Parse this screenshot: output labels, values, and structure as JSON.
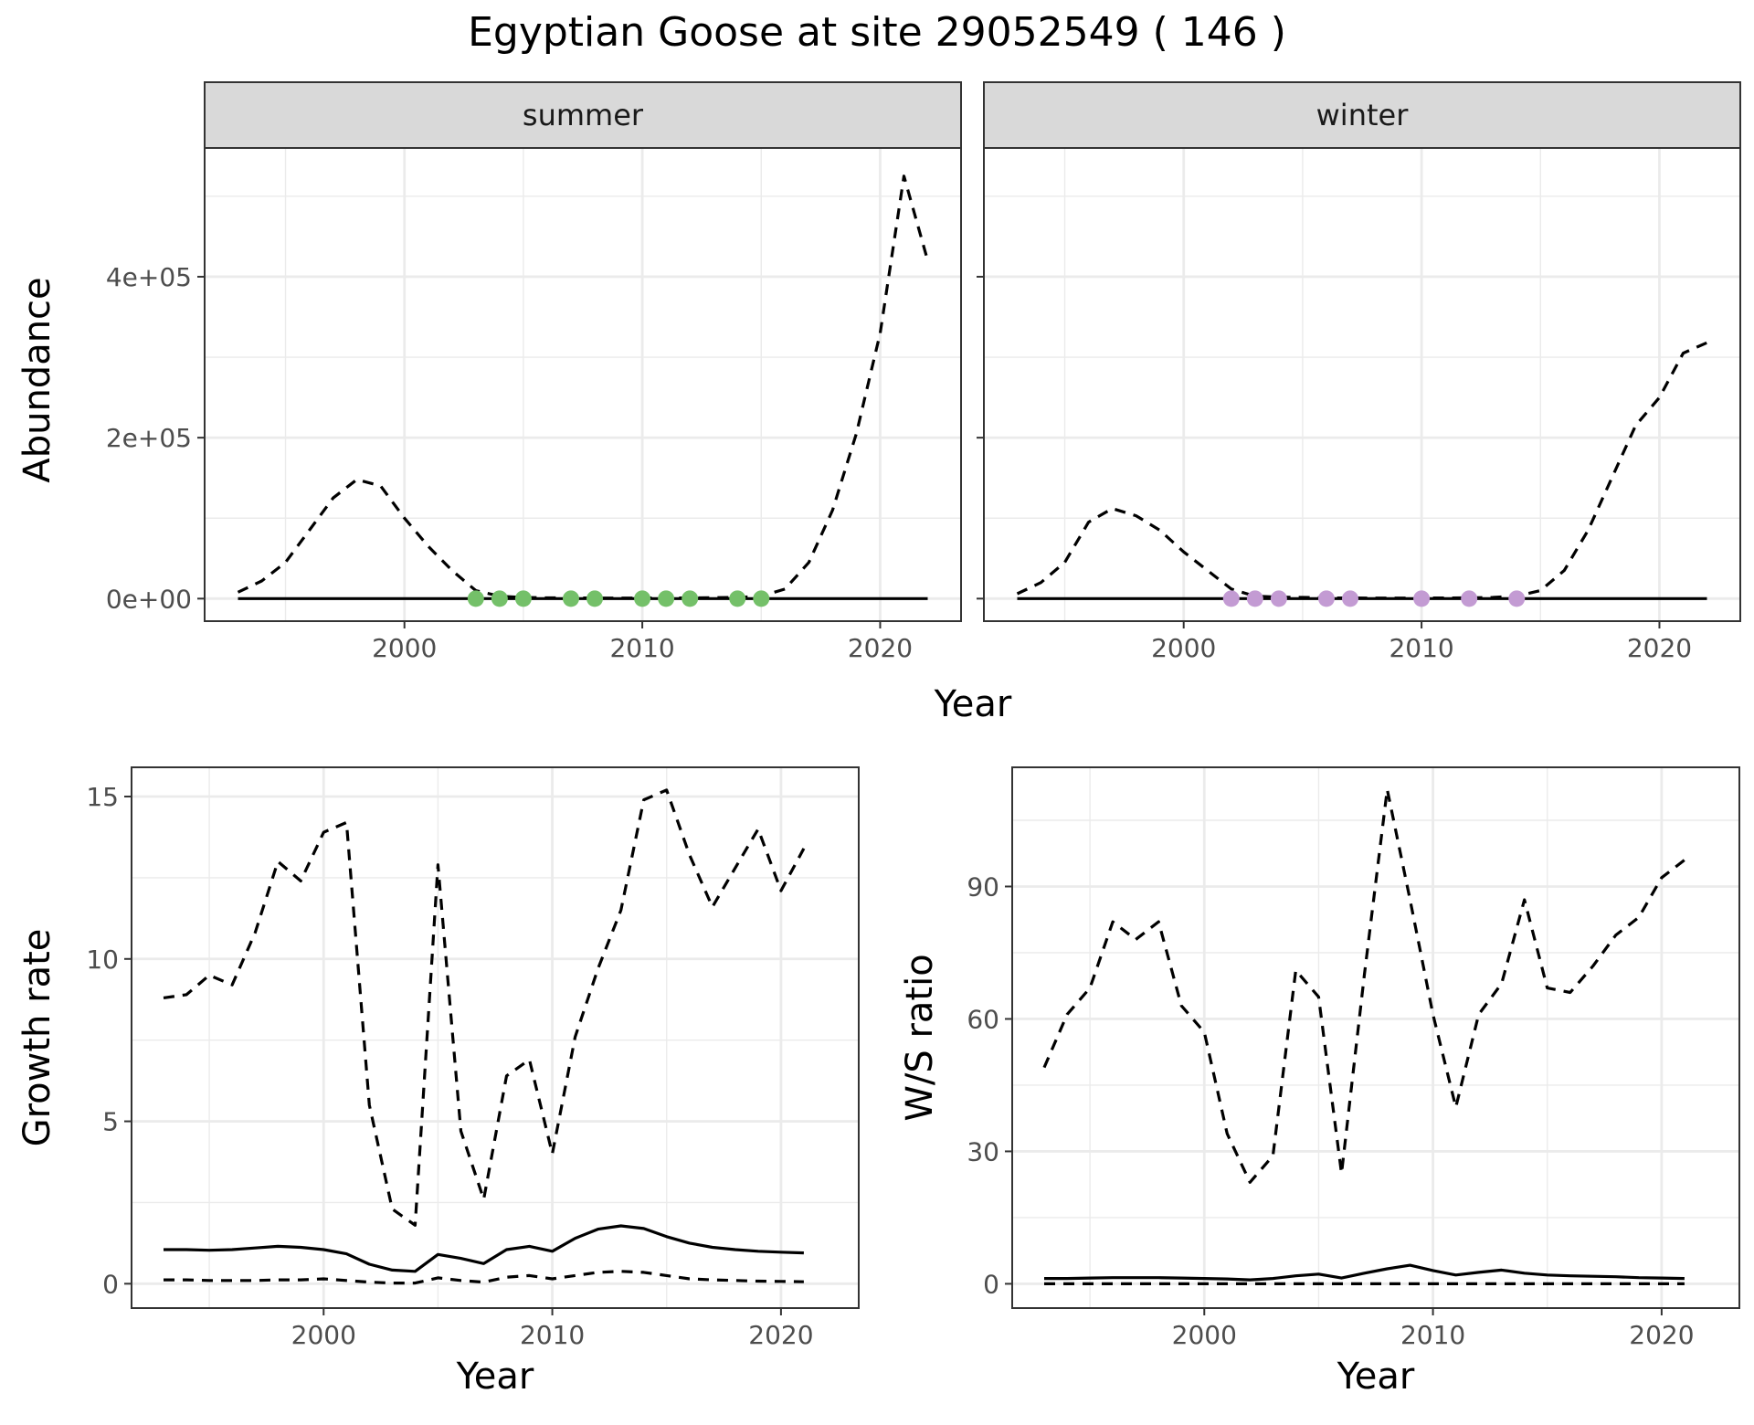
{
  "title": "Egyptian Goose at site 29052549 ( 146 )",
  "colors": {
    "summer_points": "#74c069",
    "winter_points": "#c39bd3",
    "panel_border": "#333333",
    "strip_fill": "#d9d9d9",
    "grid": "#ebebeb"
  },
  "chart_data": [
    {
      "type": "line",
      "facet": "summer",
      "xlabel": "Year",
      "ylabel": "Abundance",
      "xlim": [
        1991.6,
        2023.4
      ],
      "ylim": [
        -28000,
        560000
      ],
      "x_ticks": [
        2000,
        2010,
        2020
      ],
      "x_tick_labels": [
        "2000",
        "2010",
        "2020"
      ],
      "y_ticks": [
        0,
        200000,
        400000
      ],
      "y_tick_labels": [
        "0e+00",
        "2e+05",
        "4e+05"
      ],
      "series": [
        {
          "style": "dashed",
          "x": [
            1993,
            1994,
            1995,
            1996,
            1997,
            1998,
            1999,
            2000,
            2001,
            2002,
            2003,
            2004,
            2005,
            2006,
            2007,
            2008,
            2009,
            2010,
            2011,
            2012,
            2013,
            2014,
            2015,
            2016,
            2017,
            2018,
            2019,
            2020,
            2021,
            2022
          ],
          "values": [
            8000,
            22000,
            45000,
            85000,
            125000,
            148000,
            140000,
            100000,
            65000,
            35000,
            10000,
            3000,
            1500,
            1000,
            800,
            700,
            700,
            700,
            800,
            900,
            1200,
            1500,
            3000,
            12000,
            45000,
            110000,
            205000,
            330000,
            525000,
            420000
          ]
        },
        {
          "style": "solid",
          "x": [
            1993,
            2022
          ],
          "values": [
            0,
            0
          ]
        },
        {
          "style": "points",
          "x": [
            2003,
            2004,
            2005,
            2007,
            2008,
            2010,
            2011,
            2012,
            2014,
            2015
          ],
          "values": [
            0,
            0,
            0,
            0,
            0,
            0,
            0,
            0,
            0,
            0
          ]
        }
      ]
    },
    {
      "type": "line",
      "facet": "winter",
      "xlabel": "Year",
      "ylabel": "Abundance",
      "xlim": [
        1991.6,
        2023.4
      ],
      "ylim": [
        -28000,
        560000
      ],
      "x_ticks": [
        2000,
        2010,
        2020
      ],
      "x_tick_labels": [
        "2000",
        "2010",
        "2020"
      ],
      "y_ticks": [
        0,
        200000,
        400000
      ],
      "series": [
        {
          "style": "dashed",
          "x": [
            1993,
            1994,
            1995,
            1996,
            1997,
            1998,
            1999,
            2000,
            2001,
            2002,
            2003,
            2004,
            2005,
            2006,
            2007,
            2008,
            2009,
            2010,
            2011,
            2012,
            2013,
            2014,
            2015,
            2016,
            2017,
            2018,
            2019,
            2020,
            2021,
            2022
          ],
          "values": [
            6000,
            20000,
            45000,
            95000,
            112000,
            103000,
            85000,
            58000,
            35000,
            12000,
            3000,
            2000,
            1500,
            1000,
            800,
            700,
            700,
            700,
            800,
            1000,
            1500,
            3000,
            10000,
            35000,
            85000,
            150000,
            215000,
            250000,
            305000,
            318000
          ]
        },
        {
          "style": "solid",
          "x": [
            1993,
            2022
          ],
          "values": [
            0,
            0
          ]
        },
        {
          "style": "points",
          "x": [
            2002,
            2003,
            2004,
            2006,
            2007,
            2010,
            2012,
            2014
          ],
          "values": [
            0,
            0,
            0,
            0,
            0,
            0,
            0,
            0
          ]
        }
      ]
    },
    {
      "type": "line",
      "xlabel": "Year",
      "ylabel": "Growth rate",
      "xlim": [
        1991.6,
        2023.4
      ],
      "ylim": [
        -0.75,
        15.9
      ],
      "x_ticks": [
        2000,
        2010,
        2020
      ],
      "x_tick_labels": [
        "2000",
        "2010",
        "2020"
      ],
      "y_ticks": [
        0,
        5,
        10,
        15
      ],
      "y_tick_labels": [
        "0",
        "5",
        "10",
        "15"
      ],
      "series": [
        {
          "style": "dashed",
          "x": [
            1993,
            1994,
            1995,
            1996,
            1997,
            1998,
            1999,
            2000,
            2001,
            2002,
            2003,
            2004,
            2005,
            2006,
            2007,
            2008,
            2009,
            2010,
            2011,
            2012,
            2013,
            2014,
            2015,
            2016,
            2017,
            2018,
            2019,
            2020,
            2021
          ],
          "values": [
            8.8,
            8.9,
            9.5,
            9.2,
            10.8,
            13.0,
            12.4,
            13.9,
            14.2,
            5.5,
            2.3,
            1.8,
            12.9,
            4.7,
            2.6,
            6.4,
            6.9,
            4.0,
            7.6,
            9.7,
            11.5,
            14.9,
            15.2,
            13.2,
            11.6,
            12.8,
            14.0,
            12.1,
            13.4
          ]
        },
        {
          "style": "solid",
          "x": [
            1993,
            1994,
            1995,
            1996,
            1997,
            1998,
            1999,
            2000,
            2001,
            2002,
            2003,
            2004,
            2005,
            2006,
            2007,
            2008,
            2009,
            2010,
            2011,
            2012,
            2013,
            2014,
            2015,
            2016,
            2017,
            2018,
            2019,
            2020,
            2021
          ],
          "values": [
            1.05,
            1.05,
            1.03,
            1.05,
            1.1,
            1.15,
            1.12,
            1.05,
            0.92,
            0.6,
            0.42,
            0.38,
            0.9,
            0.78,
            0.62,
            1.05,
            1.15,
            1.0,
            1.4,
            1.68,
            1.78,
            1.7,
            1.45,
            1.25,
            1.12,
            1.05,
            1.0,
            0.97,
            0.95
          ]
        },
        {
          "style": "dashed",
          "x": [
            1993,
            1994,
            1995,
            1996,
            1997,
            1998,
            1999,
            2000,
            2001,
            2002,
            2003,
            2004,
            2005,
            2006,
            2007,
            2008,
            2009,
            2010,
            2011,
            2012,
            2013,
            2014,
            2015,
            2016,
            2017,
            2018,
            2019,
            2020,
            2021
          ],
          "values": [
            0.12,
            0.12,
            0.1,
            0.1,
            0.1,
            0.12,
            0.12,
            0.15,
            0.1,
            0.05,
            0.02,
            0.02,
            0.18,
            0.1,
            0.05,
            0.2,
            0.25,
            0.15,
            0.25,
            0.35,
            0.38,
            0.35,
            0.25,
            0.15,
            0.12,
            0.1,
            0.08,
            0.07,
            0.06
          ]
        }
      ]
    },
    {
      "type": "line",
      "xlabel": "Year",
      "ylabel": "W/S ratio",
      "xlim": [
        1991.6,
        2023.4
      ],
      "ylim": [
        -5.5,
        117
      ],
      "x_ticks": [
        2000,
        2010,
        2020
      ],
      "x_tick_labels": [
        "2000",
        "2010",
        "2020"
      ],
      "y_ticks": [
        0,
        30,
        60,
        90
      ],
      "y_tick_labels": [
        "0",
        "30",
        "60",
        "90"
      ],
      "series": [
        {
          "style": "dashed",
          "x": [
            1993,
            1994,
            1995,
            1996,
            1997,
            1998,
            1999,
            2000,
            2001,
            2002,
            2003,
            2004,
            2005,
            2006,
            2007,
            2008,
            2009,
            2010,
            2011,
            2012,
            2013,
            2014,
            2015,
            2016,
            2017,
            2018,
            2019,
            2020,
            2021
          ],
          "values": [
            49,
            61,
            67,
            82,
            78,
            82,
            63,
            57,
            34,
            23,
            29,
            71,
            65,
            25,
            70,
            112,
            87,
            61,
            40,
            61,
            68,
            87,
            67,
            66,
            72,
            79,
            83,
            92,
            96
          ]
        },
        {
          "style": "solid",
          "x": [
            1993,
            1994,
            1995,
            1996,
            1997,
            1998,
            1999,
            2000,
            2001,
            2002,
            2003,
            2004,
            2005,
            2006,
            2007,
            2008,
            2009,
            2010,
            2011,
            2012,
            2013,
            2014,
            2015,
            2016,
            2017,
            2018,
            2019,
            2020,
            2021
          ],
          "values": [
            1.2,
            1.2,
            1.3,
            1.4,
            1.4,
            1.4,
            1.3,
            1.2,
            1.1,
            0.9,
            1.2,
            1.8,
            2.2,
            1.3,
            2.4,
            3.4,
            4.2,
            3.0,
            2.0,
            2.6,
            3.1,
            2.4,
            2.0,
            1.8,
            1.7,
            1.6,
            1.4,
            1.3,
            1.2
          ]
        },
        {
          "style": "dashed",
          "x": [
            1993,
            2021
          ],
          "values": [
            0,
            0
          ]
        }
      ]
    }
  ]
}
